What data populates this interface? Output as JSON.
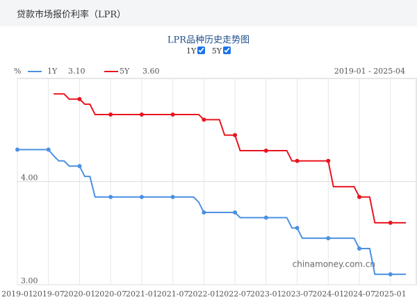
{
  "header": "贷款市场报价利率（LPR）",
  "chart_data": {
    "type": "line",
    "title": "LPR品种历史走势图",
    "y_unit": "%",
    "range_label": "2019-01 - 2025-04",
    "watermark": "chinamoney.com.cn",
    "x": [
      "2019-01",
      "2019-02",
      "2019-03",
      "2019-04",
      "2019-05",
      "2019-06",
      "2019-07",
      "2019-08",
      "2019-09",
      "2019-10",
      "2019-11",
      "2019-12",
      "2020-01",
      "2020-02",
      "2020-03",
      "2020-04",
      "2020-05",
      "2020-06",
      "2020-07",
      "2020-08",
      "2020-09",
      "2020-10",
      "2020-11",
      "2020-12",
      "2021-01",
      "2021-02",
      "2021-03",
      "2021-04",
      "2021-05",
      "2021-06",
      "2021-07",
      "2021-08",
      "2021-09",
      "2021-10",
      "2021-11",
      "2021-12",
      "2022-01",
      "2022-02",
      "2022-03",
      "2022-04",
      "2022-05",
      "2022-06",
      "2022-07",
      "2022-08",
      "2022-09",
      "2022-10",
      "2022-11",
      "2022-12",
      "2023-01",
      "2023-02",
      "2023-03",
      "2023-04",
      "2023-05",
      "2023-06",
      "2023-07",
      "2023-08",
      "2023-09",
      "2023-10",
      "2023-11",
      "2023-12",
      "2024-01",
      "2024-02",
      "2024-03",
      "2024-04",
      "2024-05",
      "2024-06",
      "2024-07",
      "2024-08",
      "2024-09",
      "2024-10",
      "2024-11",
      "2024-12",
      "2025-01",
      "2025-02",
      "2025-03",
      "2025-04"
    ],
    "series": [
      {
        "name": "1Y",
        "color": "#4a90e2",
        "legend_value": "3.10",
        "values": [
          4.31,
          4.31,
          4.31,
          4.31,
          4.31,
          4.31,
          4.31,
          4.25,
          4.2,
          4.2,
          4.15,
          4.15,
          4.15,
          4.05,
          4.05,
          3.85,
          3.85,
          3.85,
          3.85,
          3.85,
          3.85,
          3.85,
          3.85,
          3.85,
          3.85,
          3.85,
          3.85,
          3.85,
          3.85,
          3.85,
          3.85,
          3.85,
          3.85,
          3.85,
          3.85,
          3.8,
          3.7,
          3.7,
          3.7,
          3.7,
          3.7,
          3.7,
          3.7,
          3.65,
          3.65,
          3.65,
          3.65,
          3.65,
          3.65,
          3.65,
          3.65,
          3.65,
          3.65,
          3.55,
          3.55,
          3.45,
          3.45,
          3.45,
          3.45,
          3.45,
          3.45,
          3.45,
          3.45,
          3.45,
          3.45,
          3.45,
          3.35,
          3.35,
          3.35,
          3.1,
          3.1,
          3.1,
          3.1,
          3.1,
          3.1,
          3.1
        ]
      },
      {
        "name": "5Y",
        "color": "#e8141e",
        "legend_value": "3.60",
        "values": [
          null,
          null,
          null,
          null,
          null,
          null,
          null,
          4.85,
          4.85,
          4.85,
          4.8,
          4.8,
          4.8,
          4.75,
          4.75,
          4.65,
          4.65,
          4.65,
          4.65,
          4.65,
          4.65,
          4.65,
          4.65,
          4.65,
          4.65,
          4.65,
          4.65,
          4.65,
          4.65,
          4.65,
          4.65,
          4.65,
          4.65,
          4.65,
          4.65,
          4.65,
          4.6,
          4.6,
          4.6,
          4.6,
          4.45,
          4.45,
          4.45,
          4.3,
          4.3,
          4.3,
          4.3,
          4.3,
          4.3,
          4.3,
          4.3,
          4.3,
          4.3,
          4.2,
          4.2,
          4.2,
          4.2,
          4.2,
          4.2,
          4.2,
          4.2,
          3.95,
          3.95,
          3.95,
          3.95,
          3.95,
          3.85,
          3.85,
          3.85,
          3.6,
          3.6,
          3.6,
          3.6,
          3.6,
          3.6,
          3.6
        ]
      }
    ],
    "xlim": [
      "2019-01",
      "2025-06"
    ],
    "xticks": [
      "2019-01",
      "2019-07",
      "2020-01",
      "2020-07",
      "2021-01",
      "2021-07",
      "2022-01",
      "2022-07",
      "2023-01",
      "2023-07",
      "2024-01",
      "2024-07",
      "2025-01"
    ],
    "ylim": [
      3,
      5
    ],
    "yticks": [
      {
        "value": 3,
        "label": "3.00"
      },
      {
        "value": 4,
        "label": "4.00"
      }
    ],
    "grid": true
  }
}
